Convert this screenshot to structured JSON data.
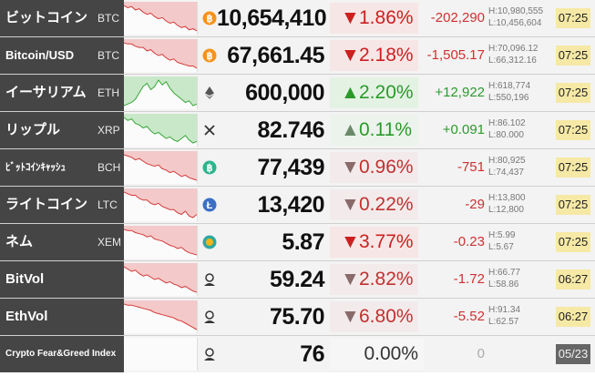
{
  "rows": [
    {
      "label": "ビットコイン",
      "symbol": "BTC",
      "icon": "bitcoin-icon",
      "icon_color": "#f7931a",
      "price": "10,654,410",
      "change_pct": "1.86%",
      "direction": "down",
      "change_abs": "-202,290",
      "high": "H:10,980,555",
      "low": "L:10,456,604",
      "time": "07:25",
      "spark": [
        6,
        8,
        7,
        10,
        9,
        12,
        14,
        13,
        16,
        18,
        17,
        20,
        22,
        21,
        24,
        26,
        25,
        28,
        27,
        29
      ]
    },
    {
      "label": "Bitcoin/USD",
      "symbol": "BTC",
      "icon": "bitcoin-icon",
      "icon_color": "#f7931a",
      "price": "67,661.45",
      "change_pct": "2.18%",
      "direction": "down",
      "change_abs": "-1,505.17",
      "high": "H:70,096.12",
      "low": "L:66,312.16",
      "time": "07:25",
      "spark": [
        8,
        9,
        9,
        11,
        12,
        12,
        15,
        14,
        17,
        19,
        18,
        21,
        23,
        22,
        25,
        26,
        27,
        28,
        28,
        30
      ]
    },
    {
      "label": "イーサリアム",
      "symbol": "ETH",
      "icon": "ethereum-icon",
      "icon_color": "#555555",
      "price": "600,000",
      "change_pct": "2.20%",
      "direction": "up",
      "change_abs": "+12,922",
      "high": "H:618,774",
      "low": "L:550,196",
      "time": "07:25",
      "spark": [
        26,
        25,
        24,
        22,
        18,
        14,
        12,
        16,
        14,
        10,
        13,
        11,
        15,
        18,
        20,
        22,
        24,
        23,
        26,
        25
      ]
    },
    {
      "label": "リップル",
      "symbol": "XRP",
      "icon": "ripple-icon",
      "icon_color": "#333333",
      "price": "82.746",
      "change_pct": "0.11%",
      "direction": "up-dim",
      "change_abs": "+0.091",
      "high": "H:86.102",
      "low": "L:80.000",
      "time": "07:25",
      "spark": [
        10,
        12,
        11,
        14,
        15,
        17,
        16,
        19,
        21,
        20,
        22,
        24,
        23,
        25,
        26,
        24,
        22,
        25,
        27,
        26
      ]
    },
    {
      "label": "ﾋﾞｯﾄｺｲﾝｷｬｯｼｭ",
      "symbol": "BCH",
      "icon": "bitcoin-cash-icon",
      "icon_color": "#2bb58c",
      "price": "77,439",
      "change_pct": "0.96%",
      "direction": "down-dim",
      "change_abs": "-751",
      "high": "H:80,925",
      "low": "L:74,437",
      "time": "07:25",
      "spark": [
        8,
        9,
        10,
        12,
        11,
        13,
        15,
        16,
        17,
        16,
        19,
        20,
        22,
        21,
        23,
        25,
        24,
        26,
        27,
        28
      ]
    },
    {
      "label": "ライトコイン",
      "symbol": "LTC",
      "icon": "litecoin-icon",
      "icon_color": "#3a6fc4",
      "price": "13,420",
      "change_pct": "0.22%",
      "direction": "down-dim",
      "change_abs": "-29",
      "high": "H:13,800",
      "low": "L:12,800",
      "time": "07:25",
      "spark": [
        10,
        11,
        12,
        12,
        14,
        15,
        15,
        17,
        18,
        17,
        19,
        20,
        21,
        21,
        23,
        24,
        22,
        25,
        26,
        24
      ]
    },
    {
      "label": "ネム",
      "symbol": "XEM",
      "icon": "nem-icon",
      "icon_color": "#2fa8a0",
      "price": "5.87",
      "change_pct": "3.77%",
      "direction": "down",
      "change_abs": "-0.23",
      "high": "H:5.99",
      "low": "L:5.67",
      "time": "07:25",
      "spark": [
        6,
        7,
        7,
        9,
        10,
        11,
        13,
        12,
        15,
        16,
        17,
        19,
        21,
        22,
        24,
        23,
        26,
        28,
        29,
        30
      ]
    },
    {
      "label": "BitVol",
      "symbol": "",
      "icon": "volatility-icon",
      "icon_color": "#333333",
      "price": "59.24",
      "change_pct": "2.82%",
      "direction": "down-dim",
      "change_abs": "-1.72",
      "high": "H:66.77",
      "low": "L:58.86",
      "time": "06:27",
      "spark": [
        6,
        8,
        10,
        9,
        12,
        14,
        13,
        15,
        17,
        16,
        18,
        20,
        19,
        21,
        22,
        24,
        23,
        25,
        27,
        28
      ]
    },
    {
      "label": "EthVol",
      "symbol": "",
      "icon": "volatility-icon",
      "icon_color": "#333333",
      "price": "75.70",
      "change_pct": "6.80%",
      "direction": "down-dim",
      "change_abs": "-5.52",
      "high": "H:91.34",
      "low": "L:62.57",
      "time": "06:27",
      "spark": [
        8,
        9,
        9,
        10,
        11,
        12,
        13,
        14,
        16,
        17,
        18,
        19,
        20,
        21,
        23,
        24,
        26,
        28,
        30,
        32
      ]
    },
    {
      "label": "Crypto Fear&Greed Index",
      "symbol": "",
      "icon": "fear-greed-icon",
      "icon_color": "#333333",
      "price": "76",
      "change_pct": "0.00%",
      "direction": "flat",
      "change_abs": "0",
      "high": "",
      "low": "",
      "time": "05/23",
      "spark": []
    }
  ]
}
